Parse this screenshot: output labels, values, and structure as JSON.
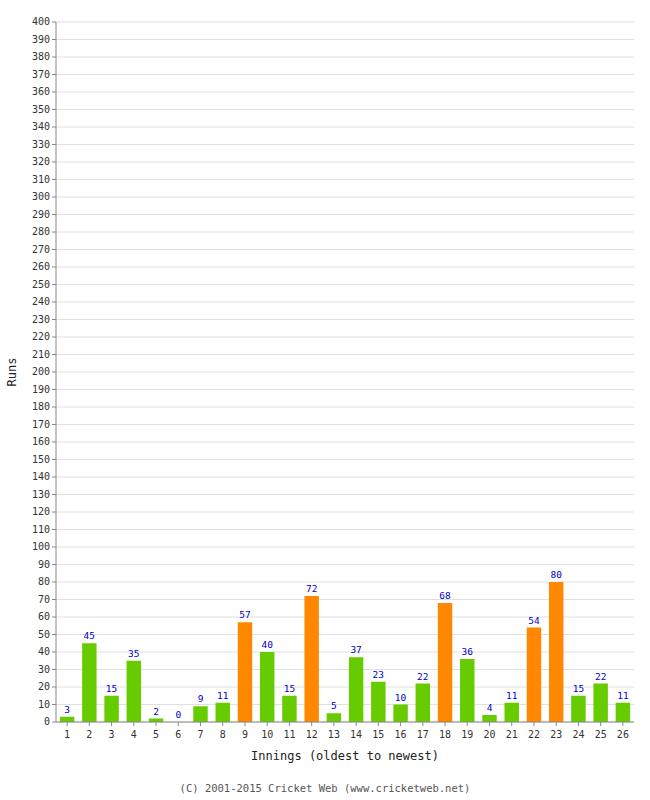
{
  "chart_data": {
    "type": "bar",
    "categories": [
      "1",
      "2",
      "3",
      "4",
      "5",
      "6",
      "7",
      "8",
      "9",
      "10",
      "11",
      "12",
      "13",
      "14",
      "15",
      "16",
      "17",
      "18",
      "19",
      "20",
      "21",
      "22",
      "23",
      "24",
      "25",
      "26"
    ],
    "values": [
      3,
      45,
      15,
      35,
      2,
      0,
      9,
      11,
      57,
      40,
      15,
      72,
      5,
      37,
      23,
      10,
      22,
      68,
      36,
      4,
      11,
      54,
      80,
      15,
      22,
      11
    ],
    "colors": [
      "#66cc00",
      "#66cc00",
      "#66cc00",
      "#66cc00",
      "#66cc00",
      "#66cc00",
      "#66cc00",
      "#66cc00",
      "#ff8800",
      "#66cc00",
      "#66cc00",
      "#ff8800",
      "#66cc00",
      "#66cc00",
      "#66cc00",
      "#66cc00",
      "#66cc00",
      "#ff8800",
      "#66cc00",
      "#66cc00",
      "#66cc00",
      "#ff8800",
      "#ff8800",
      "#66cc00",
      "#66cc00",
      "#66cc00"
    ],
    "xlabel": "Innings (oldest to newest)",
    "ylabel": "Runs",
    "ylim": [
      0,
      400
    ],
    "yticks": [
      0,
      10,
      20,
      30,
      40,
      50,
      60,
      70,
      80,
      90,
      100,
      110,
      120,
      130,
      140,
      150,
      160,
      170,
      180,
      190,
      200,
      210,
      220,
      230,
      240,
      250,
      260,
      270,
      280,
      290,
      300,
      310,
      320,
      330,
      340,
      350,
      360,
      370,
      380,
      390,
      400
    ],
    "grid": true,
    "data_labels": true,
    "annotations": [
      "(C) 2001-2015 Cricket Web (www.cricketweb.net)"
    ]
  }
}
